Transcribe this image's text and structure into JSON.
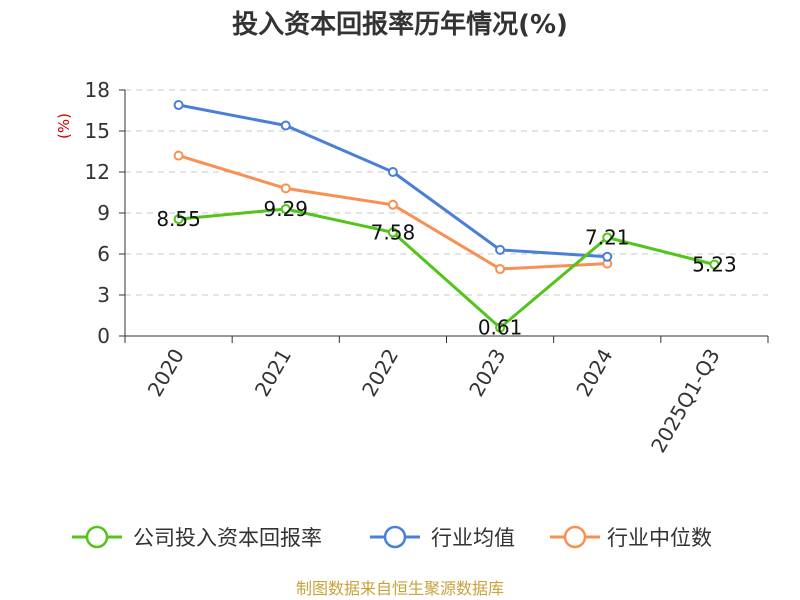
{
  "chart_data": {
    "type": "line",
    "title": "投入资本回报率历年情况(%)",
    "ylabel": "(%)",
    "xlabel": "",
    "categories": [
      "2020",
      "2021",
      "2022",
      "2023",
      "2024",
      "2025Q1-Q3"
    ],
    "ylim": [
      0,
      18
    ],
    "yticks": [
      0,
      3,
      6,
      9,
      12,
      15,
      18
    ],
    "grid": true,
    "legend_position": "bottom",
    "series": [
      {
        "name": "公司投入资本回报率",
        "color": "#52c41a",
        "values": [
          8.55,
          9.29,
          7.58,
          0.61,
          7.21,
          5.23
        ],
        "labels": [
          "8.55",
          "9.29",
          "7.58",
          "0.61",
          "7.21",
          "5.23"
        ]
      },
      {
        "name": "行业均值",
        "color": "#4a7fd8",
        "values": [
          16.9,
          15.4,
          12.0,
          6.3,
          5.8,
          null
        ]
      },
      {
        "name": "行业中位数",
        "color": "#f79052",
        "values": [
          13.2,
          10.8,
          9.6,
          4.9,
          5.3,
          null
        ]
      }
    ],
    "source": "制图数据来自恒生聚源数据库"
  }
}
